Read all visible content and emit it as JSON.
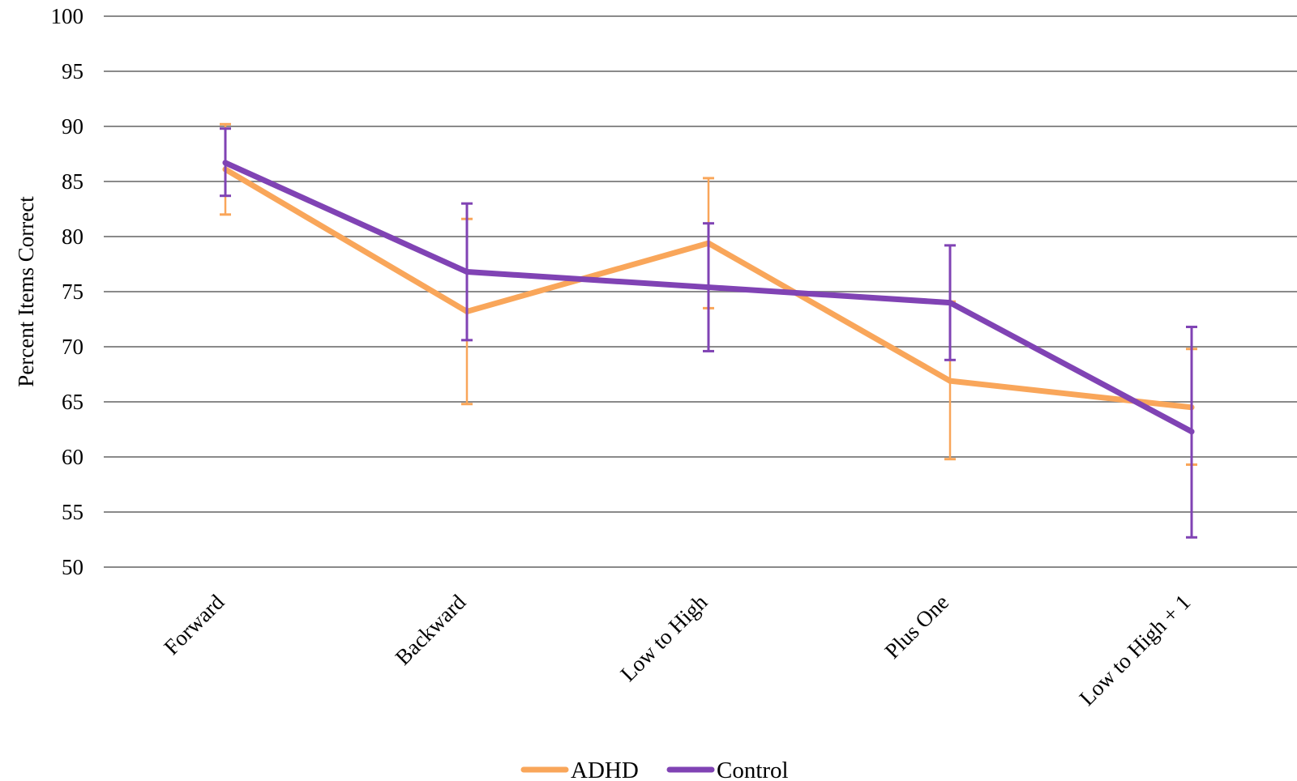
{
  "chart_data": {
    "type": "line",
    "categories": [
      "Forward",
      "Backward",
      "Low to High",
      "Plus One",
      "Low to High + 1"
    ],
    "ylabel": "Percent Items Correct",
    "xlabel": "",
    "ylim": [
      50,
      100
    ],
    "yticks": [
      50,
      55,
      60,
      65,
      70,
      75,
      80,
      85,
      90,
      95,
      100
    ],
    "grid": true,
    "legend_position": "bottom",
    "series": [
      {
        "name": "ADHD",
        "color": "#F9A65A",
        "values": [
          86.1,
          73.2,
          79.4,
          66.9,
          64.5
        ],
        "error_low": [
          82.0,
          64.8,
          73.5,
          59.8,
          59.3
        ],
        "error_high": [
          90.2,
          81.6,
          85.3,
          74.1,
          69.8
        ]
      },
      {
        "name": "Control",
        "color": "#8043B4",
        "values": [
          86.7,
          76.8,
          75.4,
          74.0,
          62.3
        ],
        "error_low": [
          83.7,
          70.6,
          69.6,
          68.8,
          52.7
        ],
        "error_high": [
          89.8,
          83.0,
          81.2,
          79.2,
          71.8
        ]
      }
    ]
  }
}
